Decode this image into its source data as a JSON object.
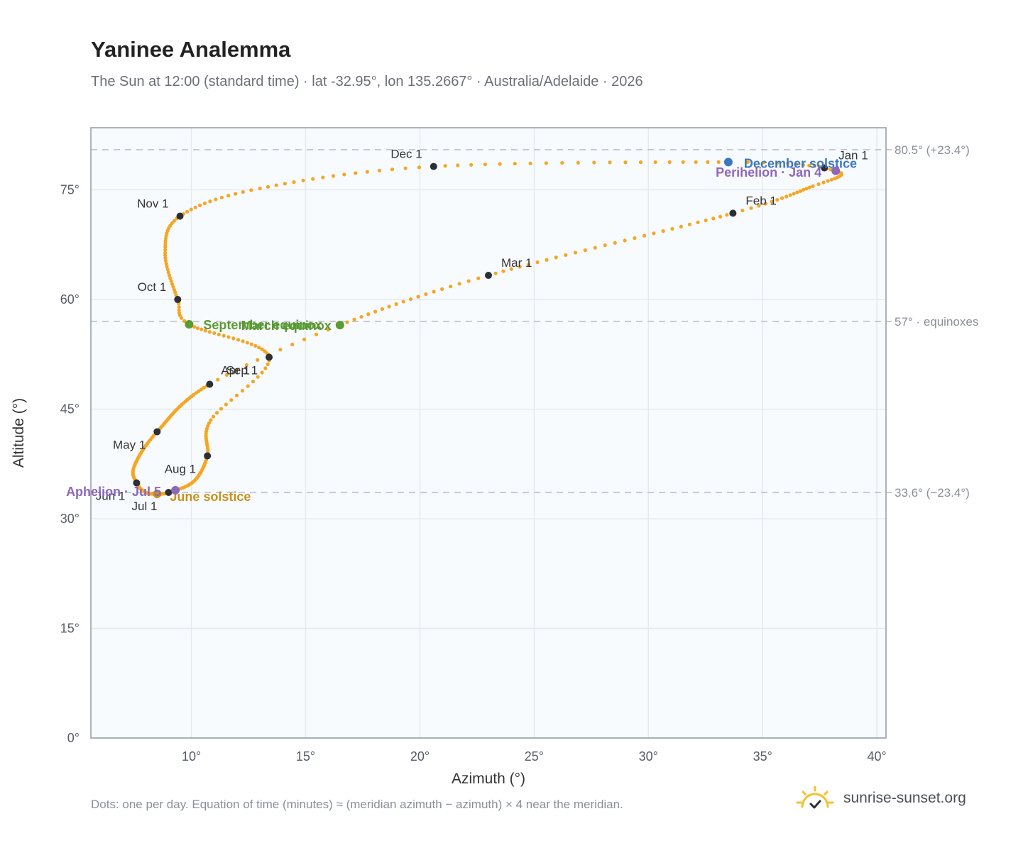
{
  "header": {
    "title": "Yaninee Analemma",
    "subtitle": "The Sun at 12:00 (standard time) · lat -32.95°, lon 135.2667° · Australia/Adelaide · 2026"
  },
  "footer": {
    "note": "Dots: one per day. Equation of time (minutes) ≈ (meridian azimuth − azimuth) × 4 near the meridian.",
    "brand": "sunrise-sunset.org"
  },
  "colors": {
    "path": "#f5a623",
    "month_dot": "#2b2f36",
    "equinox": "#5b9a34",
    "june_solstice": "#c9901c",
    "december_solstice": "#3a78c2",
    "apsis": "#8e68b8",
    "plot_bg": "#f8fbfd",
    "grid": "#e3e9ee",
    "frame": "#97a1ac",
    "ref_line": "#b8c2cc",
    "logo": "#f2c12e"
  },
  "chart_data": {
    "type": "scatter",
    "xlabel": "Azimuth (°)",
    "ylabel": "Altitude (°)",
    "xlim": [
      5.6,
      40.4
    ],
    "ylim": [
      0,
      83.5
    ],
    "xticks": [
      10,
      15,
      20,
      25,
      30,
      35,
      40
    ],
    "yticks": [
      0,
      15,
      30,
      45,
      60,
      75
    ],
    "xtick_labels": [
      "10°",
      "15°",
      "20°",
      "25°",
      "30°",
      "35°",
      "40°"
    ],
    "ytick_labels": [
      "0°",
      "15°",
      "30°",
      "45°",
      "60°",
      "75°"
    ],
    "grid": true,
    "reference_lines": [
      {
        "y": 80.5,
        "label": "80.5° (+23.4°)"
      },
      {
        "y": 57,
        "label": "57° · equinoxes"
      },
      {
        "y": 33.6,
        "label": "33.6° (−23.4°)"
      }
    ],
    "key_points": [
      {
        "label": "Jan 1",
        "x": 37.7,
        "y": 78.0
      },
      {
        "label": "Feb 1",
        "x": 33.7,
        "y": 71.8
      },
      {
        "label": "Mar 1",
        "x": 23.0,
        "y": 63.3
      },
      {
        "label": "Apr 1",
        "x": 10.8,
        "y": 48.4
      },
      {
        "label": "May 1",
        "x": 8.5,
        "y": 41.9
      },
      {
        "label": "Jun 1",
        "x": 7.6,
        "y": 34.9
      },
      {
        "label": "Jul 1",
        "x": 9.0,
        "y": 33.6
      },
      {
        "label": "Aug 1",
        "x": 10.7,
        "y": 38.6
      },
      {
        "label": "Sep 1",
        "x": 13.4,
        "y": 52.1
      },
      {
        "label": "Oct 1",
        "x": 9.4,
        "y": 60.0
      },
      {
        "label": "Nov 1",
        "x": 9.5,
        "y": 71.4
      },
      {
        "label": "Dec 1",
        "x": 20.6,
        "y": 78.2
      }
    ],
    "events": [
      {
        "label": "March equinox",
        "x": 16.5,
        "y": 56.5,
        "color": "#5b9a34"
      },
      {
        "label": "September equinox",
        "x": 9.9,
        "y": 56.6,
        "color": "#5b9a34"
      },
      {
        "label": "June solstice",
        "x": 8.5,
        "y": 33.4,
        "color": "#c9901c"
      },
      {
        "label": "December solstice",
        "x": 33.5,
        "y": 78.8,
        "color": "#3a78c2"
      },
      {
        "label": "Perihelion · Jan 4",
        "x": 38.2,
        "y": 77.6,
        "color": "#8e68b8"
      },
      {
        "label": "Aphelion · Jul 5",
        "x": 9.3,
        "y": 33.9,
        "color": "#8e68b8"
      }
    ],
    "path_waypoints": [
      {
        "day": 0,
        "x": 37.7,
        "y": 78.0
      },
      {
        "day": 6,
        "x": 38.45,
        "y": 77.1
      },
      {
        "day": 15,
        "x": 37.2,
        "y": 75.5
      },
      {
        "day": 31,
        "x": 33.7,
        "y": 71.8
      },
      {
        "day": 59,
        "x": 23.0,
        "y": 63.3
      },
      {
        "day": 78,
        "x": 16.5,
        "y": 56.5
      },
      {
        "day": 90,
        "x": 10.8,
        "y": 48.4
      },
      {
        "day": 120,
        "x": 8.5,
        "y": 41.9
      },
      {
        "day": 140,
        "x": 7.5,
        "y": 37.2
      },
      {
        "day": 151,
        "x": 7.6,
        "y": 34.9
      },
      {
        "day": 162,
        "x": 8.0,
        "y": 33.6
      },
      {
        "day": 172,
        "x": 8.5,
        "y": 33.4
      },
      {
        "day": 181,
        "x": 9.0,
        "y": 33.6
      },
      {
        "day": 195,
        "x": 10.1,
        "y": 35.1
      },
      {
        "day": 212,
        "x": 10.7,
        "y": 38.6
      },
      {
        "day": 228,
        "x": 10.85,
        "y": 43.5
      },
      {
        "day": 243,
        "x": 13.4,
        "y": 52.1
      },
      {
        "day": 265,
        "x": 9.9,
        "y": 56.6
      },
      {
        "day": 273,
        "x": 9.4,
        "y": 60.0
      },
      {
        "day": 290,
        "x": 8.85,
        "y": 66.4
      },
      {
        "day": 304,
        "x": 9.5,
        "y": 71.4
      },
      {
        "day": 318,
        "x": 13.0,
        "y": 75.2
      },
      {
        "day": 334,
        "x": 20.6,
        "y": 78.2
      },
      {
        "day": 355,
        "x": 33.5,
        "y": 78.8
      },
      {
        "day": 364,
        "x": 37.5,
        "y": 78.2
      }
    ]
  }
}
